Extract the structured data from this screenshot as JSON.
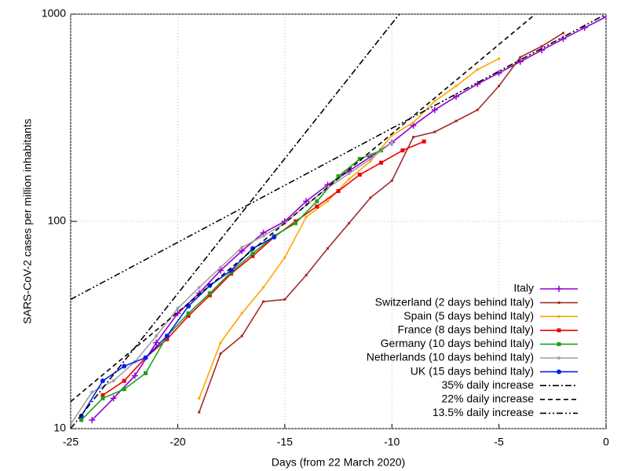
{
  "chart_data": {
    "type": "line",
    "x_label": "Days (from 22 March 2020)",
    "y_label": "SARS-CoV-2 cases per million inhabitants",
    "xlim": [
      -25,
      0
    ],
    "xticks": [
      -25,
      -20,
      -15,
      -10,
      -5,
      0
    ],
    "ylim": [
      10,
      1000
    ],
    "yticks": [
      10,
      100,
      1000
    ],
    "ylog": true,
    "grid": true,
    "legend": "lower-right",
    "series": [
      {
        "name": "Italy",
        "color": "#9400d3",
        "marker": "plus",
        "dash": "solid",
        "x": [
          -24,
          -23,
          -22,
          -21,
          -20,
          -19,
          -18,
          -17,
          -16,
          -15,
          -14,
          -13,
          -12,
          -11,
          -10,
          -9,
          -8,
          -7,
          -6,
          -5,
          -4,
          -3,
          -2,
          -1,
          0
        ],
        "values": [
          11,
          14,
          18,
          26,
          36,
          45,
          58,
          72,
          88,
          100,
          125,
          150,
          175,
          205,
          240,
          290,
          345,
          400,
          460,
          520,
          590,
          670,
          760,
          860,
          970
        ]
      },
      {
        "name": "Switzerland (2 days behind Italy)",
        "color": "#a52a2a",
        "marker": "square-small",
        "dash": "solid",
        "x": [
          -19,
          -18,
          -17,
          -16,
          -15,
          -14,
          -13,
          -12,
          -11,
          -10,
          -9,
          -8,
          -7,
          -6,
          -5,
          -4,
          -3,
          -2
        ],
        "values": [
          12,
          23,
          28,
          41,
          42,
          55,
          74,
          98,
          130,
          157,
          255,
          270,
          305,
          345,
          450,
          620,
          700,
          810
        ]
      },
      {
        "name": "Spain (5 days behind Italy)",
        "color": "#ffa500",
        "marker": "square-small",
        "dash": "solid",
        "x": [
          -19,
          -18,
          -17,
          -16,
          -15,
          -14,
          -13,
          -12,
          -11,
          -10,
          -9,
          -8,
          -7,
          -6,
          -5
        ],
        "values": [
          14,
          26,
          36,
          48,
          67,
          105,
          125,
          160,
          195,
          260,
          300,
          380,
          450,
          540,
          610
        ]
      },
      {
        "name": "France (8 days behind Italy)",
        "color": "#ee0000",
        "marker": "square",
        "dash": "solid",
        "x": [
          -23.5,
          -22.5,
          -21.5,
          -20.5,
          -19.5,
          -18.5,
          -17.5,
          -16.5,
          -15.5,
          -14.5,
          -13.5,
          -12.5,
          -11.5,
          -10.5,
          -9.5,
          -8.5
        ],
        "values": [
          14.5,
          17,
          22,
          27,
          35,
          44,
          56,
          68,
          84,
          100,
          118,
          140,
          168,
          192,
          220,
          243
        ]
      },
      {
        "name": "Germany (10 days behind Italy)",
        "color": "#1aa31a",
        "marker": "square",
        "dash": "solid",
        "x": [
          -24.5,
          -23.5,
          -22.5,
          -21.5,
          -20.5,
          -19.5,
          -18.5,
          -17.5,
          -16.5,
          -15.5,
          -14.5,
          -13.5,
          -12.5,
          -11.5,
          -10.5
        ],
        "values": [
          11,
          14,
          15.5,
          18.5,
          28,
          36,
          45,
          57,
          70,
          85,
          98,
          125,
          165,
          200,
          220
        ]
      },
      {
        "name": "Netherlands (10 days behind Italy)",
        "color": "#a0a0a0",
        "marker": "circle-small",
        "dash": "solid",
        "x": [
          -25,
          -24,
          -23,
          -22,
          -21,
          -20,
          -19,
          -18,
          -17,
          -16,
          -15,
          -14,
          -13,
          -12,
          -11,
          -10
        ],
        "values": [
          10.5,
          15,
          17,
          21,
          28,
          38,
          48,
          60,
          75,
          85,
          98,
          120,
          145,
          170,
          200,
          240
        ]
      },
      {
        "name": "UK (15 days behind Italy)",
        "color": "#0022ee",
        "marker": "circle",
        "dash": "solid",
        "x": [
          -24.5,
          -23.5,
          -22.5,
          -21.5,
          -20.5,
          -19.5,
          -18.5,
          -17.5,
          -16.5,
          -15.5
        ],
        "values": [
          11.5,
          17,
          20,
          22,
          28,
          39,
          49,
          58,
          74,
          84
        ]
      },
      {
        "name": "35% daily increase",
        "color": "#000000",
        "marker": "none",
        "dash": "dashdot",
        "x": [
          -25,
          -9.65
        ],
        "values": [
          10,
          1000
        ]
      },
      {
        "name": "22% daily increase",
        "color": "#000000",
        "marker": "none",
        "dash": "dash",
        "x": [
          -25,
          -3.3
        ],
        "values": [
          13.5,
          1000
        ]
      },
      {
        "name": "13.5% daily increase",
        "color": "#000000",
        "marker": "none",
        "dash": "dashdotdot",
        "x": [
          -25,
          0
        ],
        "values": [
          42,
          1000
        ]
      }
    ]
  }
}
